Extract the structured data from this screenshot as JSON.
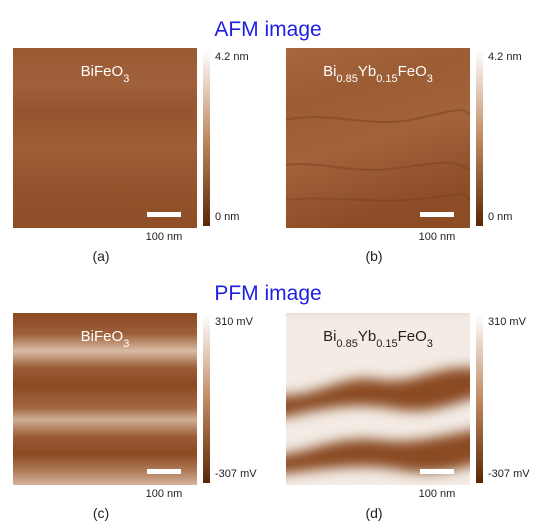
{
  "titles": {
    "afm": "AFM image",
    "pfm": "PFM image"
  },
  "panels": [
    {
      "label": "(a)",
      "material": [
        "BiFeO",
        "3"
      ],
      "scale_bar": "100 nm",
      "colorbar": {
        "max": "4.2 nm",
        "min": "0 nm"
      }
    },
    {
      "label": "(b)",
      "material": [
        "Bi",
        "0.85",
        "Yb",
        "0.15",
        "FeO",
        "3"
      ],
      "scale_bar": "100 nm",
      "colorbar": {
        "max": "4.2 nm",
        "min": "0 nm"
      }
    },
    {
      "label": "(c)",
      "material": [
        "BiFeO",
        "3"
      ],
      "scale_bar": "100 nm",
      "colorbar": {
        "max": "310 mV",
        "min": "-307 mV"
      }
    },
    {
      "label": "(d)",
      "material": [
        "Bi",
        "0.85",
        "Yb",
        "0.15",
        "FeO",
        "3"
      ],
      "scale_bar": "100 nm",
      "colorbar": {
        "max": "310 mV",
        "min": "-307 mV"
      }
    }
  ]
}
